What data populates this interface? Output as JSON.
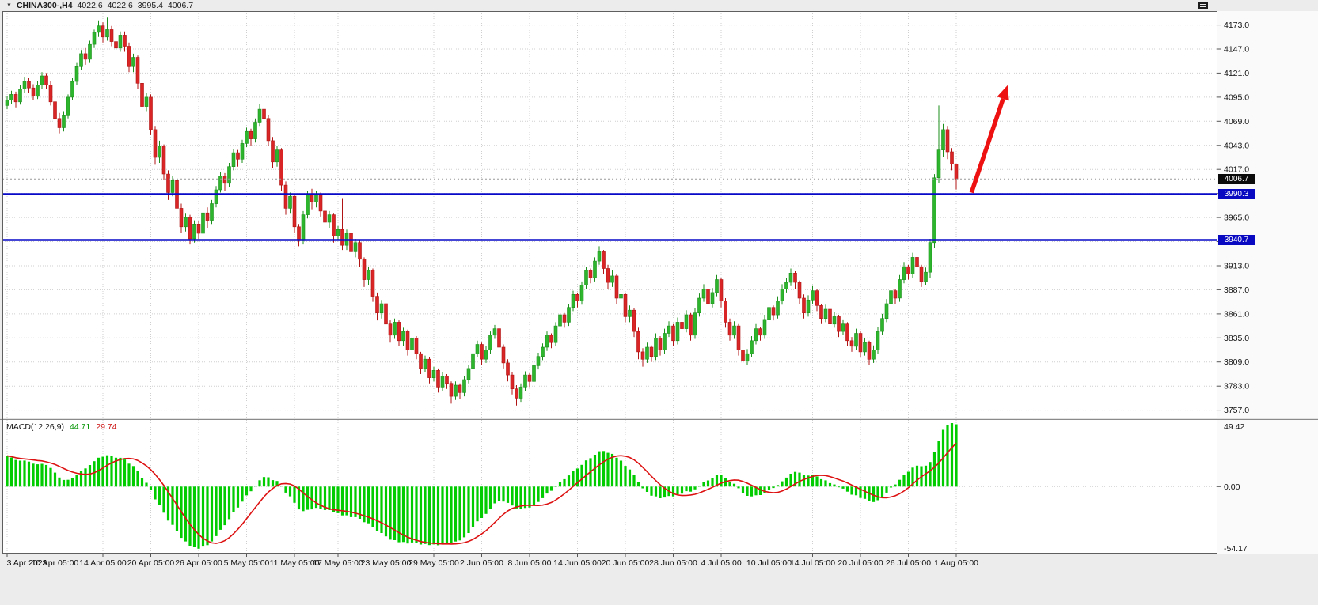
{
  "header": {
    "dropdown_glyph": "▼",
    "symbol_period": "CHINA300-,H4",
    "open": "4022.6",
    "high": "4022.6",
    "low": "3995.4",
    "close": "4006.7"
  },
  "chart_data": {
    "type": "candlestick",
    "symbol": "CHINA300",
    "timeframe": "H4",
    "title": "CHINA300-,H4 4022.6 4022.6 3995.4 4006.7",
    "current_bar": {
      "open": 4022.6,
      "high": 4022.6,
      "low": 3995.4,
      "close": 4006.7
    },
    "current_price": 4006.7,
    "current_price_label": "4006.7",
    "price_axis": {
      "pane_top_price": 4188,
      "pane_bottom_price": 3749,
      "grid_step": 26,
      "visible_labels": [
        "4173.0",
        "4147.0",
        "4121.0",
        "4095.0",
        "4069.0",
        "4043.0",
        "4017.0",
        "3991.0",
        "3965.0",
        "3939.0",
        "3913.0",
        "3887.0",
        "3861.0",
        "3835.0",
        "3809.0",
        "3783.0",
        "3757.0"
      ]
    },
    "time_axis_labels": [
      {
        "text": "3 Apr 2023",
        "bar": 0
      },
      {
        "text": "10 Apr 05:00",
        "bar": 11
      },
      {
        "text": "14 Apr 05:00",
        "bar": 22
      },
      {
        "text": "20 Apr 05:00",
        "bar": 33
      },
      {
        "text": "26 Apr 05:00",
        "bar": 44
      },
      {
        "text": "5 May 05:00",
        "bar": 55
      },
      {
        "text": "11 May 05:00",
        "bar": 66
      },
      {
        "text": "17 May 05:00",
        "bar": 76
      },
      {
        "text": "23 May 05:00",
        "bar": 87
      },
      {
        "text": "29 May 05:00",
        "bar": 98
      },
      {
        "text": "2 Jun 05:00",
        "bar": 109
      },
      {
        "text": "8 Jun 05:00",
        "bar": 120
      },
      {
        "text": "14 Jun 05:00",
        "bar": 131
      },
      {
        "text": "20 Jun 05:00",
        "bar": 142
      },
      {
        "text": "28 Jun 05:00",
        "bar": 153
      },
      {
        "text": "4 Jul 05:00",
        "bar": 164
      },
      {
        "text": "10 Jul 05:00",
        "bar": 175
      },
      {
        "text": "14 Jul 05:00",
        "bar": 185
      },
      {
        "text": "20 Jul 05:00",
        "bar": 196
      },
      {
        "text": "26 Jul 05:00",
        "bar": 207
      },
      {
        "text": "1 Aug 05:00",
        "bar": 218
      }
    ],
    "levels": [
      {
        "label": "3990.3",
        "value": 3990.3
      },
      {
        "label": "3940.7",
        "value": 3940.7
      }
    ],
    "trend_arrow": {
      "from_bar": 221.5,
      "from_price": 3992,
      "to_bar": 229.8,
      "to_price": 4108
    },
    "colors": {
      "bull": "#1d8f1d",
      "bull_fill": "#2eb52e",
      "bear": "#b01414",
      "bear_fill": "#d92525",
      "grid": "#cfcfcf",
      "level_blue": "#0808c8",
      "arrow_red": "#ee1111",
      "current_line": "#999999"
    },
    "macd": {
      "label": "MACD(12,26,9)",
      "macd_value": "44.71",
      "signal_value": "29.74",
      "params": [
        12,
        26,
        9
      ],
      "axis_labels": {
        "top": "49.42",
        "zero": "0.00",
        "bottom": "-54.17"
      },
      "histogram_color": "#00cc00",
      "signal_color": "#dd1111"
    },
    "candles": [
      [
        4086,
        4096,
        4082,
        4092
      ],
      [
        4092,
        4102,
        4088,
        4098
      ],
      [
        4098,
        4101,
        4084,
        4090
      ],
      [
        4090,
        4108,
        4087,
        4104
      ],
      [
        4104,
        4117,
        4100,
        4112
      ],
      [
        4112,
        4116,
        4100,
        4105
      ],
      [
        4105,
        4109,
        4092,
        4096
      ],
      [
        4096,
        4112,
        4093,
        4108
      ],
      [
        4108,
        4122,
        4104,
        4118
      ],
      [
        4118,
        4121,
        4104,
        4108
      ],
      [
        4108,
        4112,
        4086,
        4090
      ],
      [
        4090,
        4094,
        4068,
        4072
      ],
      [
        4072,
        4078,
        4056,
        4062
      ],
      [
        4062,
        4080,
        4058,
        4075
      ],
      [
        4075,
        4098,
        4072,
        4095
      ],
      [
        4095,
        4116,
        4092,
        4112
      ],
      [
        4112,
        4132,
        4108,
        4128
      ],
      [
        4128,
        4146,
        4124,
        4142
      ],
      [
        4142,
        4148,
        4130,
        4136
      ],
      [
        4136,
        4156,
        4132,
        4152
      ],
      [
        4152,
        4168,
        4148,
        4165
      ],
      [
        4165,
        4178,
        4160,
        4172
      ],
      [
        4172,
        4176,
        4154,
        4160
      ],
      [
        4160,
        4181,
        4156,
        4168
      ],
      [
        4168,
        4172,
        4150,
        4155
      ],
      [
        4155,
        4160,
        4142,
        4148
      ],
      [
        4148,
        4166,
        4144,
        4162
      ],
      [
        4162,
        4166,
        4144,
        4150
      ],
      [
        4150,
        4154,
        4122,
        4128
      ],
      [
        4128,
        4142,
        4122,
        4138
      ],
      [
        4138,
        4140,
        4104,
        4110
      ],
      [
        4110,
        4114,
        4078,
        4085
      ],
      [
        4085,
        4100,
        4080,
        4095
      ],
      [
        4095,
        4098,
        4054,
        4060
      ],
      [
        4060,
        4064,
        4022,
        4030
      ],
      [
        4030,
        4048,
        4024,
        4042
      ],
      [
        4042,
        4044,
        4006,
        4012
      ],
      [
        4012,
        4016,
        3984,
        3992
      ],
      [
        3992,
        4010,
        3988,
        4005
      ],
      [
        4005,
        4008,
        3968,
        3975
      ],
      [
        3975,
        3980,
        3948,
        3955
      ],
      [
        3955,
        3970,
        3950,
        3965
      ],
      [
        3965,
        3968,
        3936,
        3942
      ],
      [
        3942,
        3962,
        3938,
        3958
      ],
      [
        3958,
        3961,
        3942,
        3948
      ],
      [
        3948,
        3974,
        3944,
        3970
      ],
      [
        3970,
        3976,
        3954,
        3962
      ],
      [
        3962,
        3984,
        3958,
        3980
      ],
      [
        3980,
        3999,
        3976,
        3995
      ],
      [
        3995,
        4014,
        3992,
        4010
      ],
      [
        4010,
        4013,
        3994,
        4002
      ],
      [
        4002,
        4024,
        3998,
        4020
      ],
      [
        4020,
        4039,
        4016,
        4035
      ],
      [
        4035,
        4038,
        4020,
        4028
      ],
      [
        4028,
        4049,
        4024,
        4045
      ],
      [
        4045,
        4062,
        4041,
        4058
      ],
      [
        4058,
        4061,
        4042,
        4050
      ],
      [
        4050,
        4072,
        4046,
        4068
      ],
      [
        4068,
        4088,
        4064,
        4082
      ],
      [
        4082,
        4090,
        4066,
        4072
      ],
      [
        4072,
        4076,
        4042,
        4048
      ],
      [
        4048,
        4052,
        4018,
        4025
      ],
      [
        4025,
        4042,
        4020,
        4038
      ],
      [
        4038,
        4040,
        3994,
        4000
      ],
      [
        4000,
        4004,
        3968,
        3975
      ],
      [
        3975,
        3992,
        3970,
        3988
      ],
      [
        3988,
        3990,
        3948,
        3955
      ],
      [
        3955,
        3958,
        3934,
        3940
      ],
      [
        3940,
        3972,
        3936,
        3968
      ],
      [
        3968,
        3994,
        3964,
        3990
      ],
      [
        3990,
        3996,
        3974,
        3982
      ],
      [
        3982,
        3994,
        3976,
        3990
      ],
      [
        3990,
        3992,
        3966,
        3972
      ],
      [
        3972,
        3976,
        3952,
        3960
      ],
      [
        3960,
        3972,
        3954,
        3968
      ],
      [
        3968,
        3970,
        3938,
        3945
      ],
      [
        3945,
        3956,
        3940,
        3952
      ],
      [
        3952,
        3986,
        3930,
        3935
      ],
      [
        3935,
        3952,
        3930,
        3948
      ],
      [
        3948,
        3950,
        3922,
        3928
      ],
      [
        3928,
        3942,
        3922,
        3938
      ],
      [
        3938,
        3940,
        3912,
        3920
      ],
      [
        3920,
        3922,
        3890,
        3898
      ],
      [
        3898,
        3912,
        3892,
        3908
      ],
      [
        3908,
        3910,
        3874,
        3880
      ],
      [
        3880,
        3884,
        3854,
        3862
      ],
      [
        3862,
        3876,
        3856,
        3872
      ],
      [
        3872,
        3874,
        3844,
        3850
      ],
      [
        3850,
        3854,
        3830,
        3838
      ],
      [
        3838,
        3856,
        3834,
        3852
      ],
      [
        3852,
        3854,
        3826,
        3832
      ],
      [
        3832,
        3846,
        3826,
        3842
      ],
      [
        3842,
        3844,
        3816,
        3822
      ],
      [
        3822,
        3839,
        3818,
        3835
      ],
      [
        3835,
        3837,
        3812,
        3818
      ],
      [
        3818,
        3820,
        3796,
        3802
      ],
      [
        3802,
        3816,
        3798,
        3812
      ],
      [
        3812,
        3814,
        3786,
        3792
      ],
      [
        3792,
        3804,
        3788,
        3800
      ],
      [
        3800,
        3802,
        3776,
        3782
      ],
      [
        3782,
        3798,
        3778,
        3794
      ],
      [
        3794,
        3796,
        3780,
        3786
      ],
      [
        3786,
        3788,
        3764,
        3772
      ],
      [
        3772,
        3788,
        3768,
        3784
      ],
      [
        3784,
        3786,
        3769,
        3776
      ],
      [
        3776,
        3794,
        3772,
        3790
      ],
      [
        3790,
        3806,
        3786,
        3802
      ],
      [
        3802,
        3822,
        3798,
        3818
      ],
      [
        3818,
        3832,
        3814,
        3828
      ],
      [
        3828,
        3830,
        3806,
        3812
      ],
      [
        3812,
        3826,
        3808,
        3822
      ],
      [
        3822,
        3842,
        3818,
        3838
      ],
      [
        3838,
        3849,
        3834,
        3845
      ],
      [
        3845,
        3847,
        3820,
        3825
      ],
      [
        3825,
        3828,
        3802,
        3808
      ],
      [
        3808,
        3812,
        3788,
        3795
      ],
      [
        3795,
        3798,
        3774,
        3780
      ],
      [
        3780,
        3784,
        3762,
        3770
      ],
      [
        3770,
        3786,
        3766,
        3782
      ],
      [
        3782,
        3799,
        3778,
        3795
      ],
      [
        3795,
        3797,
        3782,
        3788
      ],
      [
        3788,
        3809,
        3784,
        3805
      ],
      [
        3805,
        3819,
        3801,
        3815
      ],
      [
        3815,
        3829,
        3811,
        3825
      ],
      [
        3825,
        3842,
        3821,
        3838
      ],
      [
        3838,
        3840,
        3824,
        3830
      ],
      [
        3830,
        3852,
        3826,
        3848
      ],
      [
        3848,
        3864,
        3844,
        3860
      ],
      [
        3860,
        3862,
        3846,
        3852
      ],
      [
        3852,
        3872,
        3848,
        3868
      ],
      [
        3868,
        3886,
        3864,
        3882
      ],
      [
        3882,
        3884,
        3868,
        3875
      ],
      [
        3875,
        3896,
        3871,
        3892
      ],
      [
        3892,
        3912,
        3888,
        3908
      ],
      [
        3908,
        3910,
        3894,
        3900
      ],
      [
        3900,
        3922,
        3896,
        3918
      ],
      [
        3918,
        3934,
        3914,
        3928
      ],
      [
        3928,
        3930,
        3904,
        3910
      ],
      [
        3910,
        3914,
        3888,
        3895
      ],
      [
        3895,
        3908,
        3890,
        3902
      ],
      [
        3902,
        3904,
        3872,
        3878
      ],
      [
        3878,
        3890,
        3874,
        3882
      ],
      [
        3882,
        3884,
        3852,
        3858
      ],
      [
        3858,
        3870,
        3852,
        3865
      ],
      [
        3865,
        3867,
        3836,
        3842
      ],
      [
        3842,
        3846,
        3812,
        3820
      ],
      [
        3820,
        3824,
        3804,
        3812
      ],
      [
        3812,
        3830,
        3808,
        3825
      ],
      [
        3825,
        3827,
        3809,
        3815
      ],
      [
        3815,
        3840,
        3811,
        3835
      ],
      [
        3835,
        3837,
        3816,
        3822
      ],
      [
        3822,
        3845,
        3818,
        3840
      ],
      [
        3840,
        3853,
        3836,
        3848
      ],
      [
        3848,
        3850,
        3826,
        3832
      ],
      [
        3832,
        3857,
        3828,
        3852
      ],
      [
        3852,
        3854,
        3838,
        3845
      ],
      [
        3845,
        3865,
        3841,
        3860
      ],
      [
        3860,
        3862,
        3832,
        3838
      ],
      [
        3838,
        3867,
        3834,
        3862
      ],
      [
        3862,
        3883,
        3858,
        3878
      ],
      [
        3878,
        3893,
        3874,
        3888
      ],
      [
        3888,
        3890,
        3866,
        3872
      ],
      [
        3872,
        3889,
        3868,
        3884
      ],
      [
        3884,
        3903,
        3880,
        3898
      ],
      [
        3898,
        3900,
        3868,
        3875
      ],
      [
        3875,
        3878,
        3846,
        3852
      ],
      [
        3852,
        3856,
        3832,
        3838
      ],
      [
        3838,
        3853,
        3834,
        3848
      ],
      [
        3848,
        3850,
        3816,
        3822
      ],
      [
        3822,
        3826,
        3804,
        3810
      ],
      [
        3810,
        3823,
        3806,
        3818
      ],
      [
        3818,
        3837,
        3814,
        3832
      ],
      [
        3832,
        3850,
        3828,
        3845
      ],
      [
        3845,
        3847,
        3832,
        3838
      ],
      [
        3838,
        3860,
        3834,
        3855
      ],
      [
        3855,
        3873,
        3851,
        3868
      ],
      [
        3868,
        3870,
        3854,
        3860
      ],
      [
        3860,
        3880,
        3856,
        3875
      ],
      [
        3875,
        3893,
        3871,
        3888
      ],
      [
        3888,
        3900,
        3884,
        3895
      ],
      [
        3895,
        3910,
        3891,
        3905
      ],
      [
        3905,
        3907,
        3888,
        3895
      ],
      [
        3895,
        3897,
        3872,
        3878
      ],
      [
        3878,
        3882,
        3856,
        3862
      ],
      [
        3862,
        3881,
        3858,
        3876
      ],
      [
        3876,
        3891,
        3872,
        3886
      ],
      [
        3886,
        3888,
        3864,
        3870
      ],
      [
        3870,
        3872,
        3850,
        3856
      ],
      [
        3856,
        3871,
        3852,
        3866
      ],
      [
        3866,
        3868,
        3844,
        3850
      ],
      [
        3850,
        3863,
        3846,
        3858
      ],
      [
        3858,
        3860,
        3836,
        3842
      ],
      [
        3842,
        3855,
        3838,
        3850
      ],
      [
        3850,
        3852,
        3826,
        3832
      ],
      [
        3832,
        3836,
        3820,
        3826
      ],
      [
        3826,
        3845,
        3822,
        3840
      ],
      [
        3840,
        3842,
        3814,
        3820
      ],
      [
        3820,
        3835,
        3816,
        3830
      ],
      [
        3830,
        3832,
        3806,
        3812
      ],
      [
        3812,
        3827,
        3808,
        3822
      ],
      [
        3822,
        3847,
        3818,
        3842
      ],
      [
        3842,
        3861,
        3838,
        3856
      ],
      [
        3856,
        3877,
        3852,
        3872
      ],
      [
        3872,
        3891,
        3868,
        3886
      ],
      [
        3886,
        3888,
        3872,
        3878
      ],
      [
        3878,
        3903,
        3874,
        3898
      ],
      [
        3898,
        3917,
        3894,
        3912
      ],
      [
        3912,
        3914,
        3898,
        3904
      ],
      [
        3904,
        3927,
        3900,
        3922
      ],
      [
        3922,
        3924,
        3906,
        3912
      ],
      [
        3912,
        3914,
        3890,
        3896
      ],
      [
        3896,
        3911,
        3892,
        3906
      ],
      [
        3906,
        3942,
        3900,
        3938
      ],
      [
        3938,
        4012,
        3932,
        4008
      ],
      [
        4008,
        4086,
        4002,
        4038
      ],
      [
        4038,
        4066,
        4030,
        4060
      ],
      [
        4060,
        4064,
        4028,
        4036
      ],
      [
        4036,
        4040,
        4016,
        4022.6
      ],
      [
        4022.6,
        4022.6,
        3995.4,
        4006.7
      ]
    ]
  }
}
